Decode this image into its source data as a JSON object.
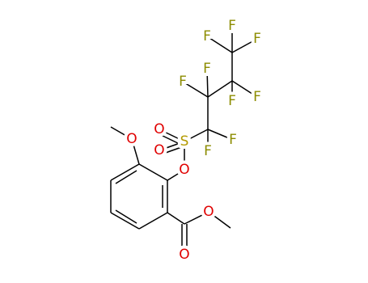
{
  "nodes": [
    {
      "label": "O"
    },
    {
      "label": "O"
    },
    {
      "label": "S"
    },
    {
      "label": "O"
    },
    {
      "label": "O"
    },
    {
      "label": "F"
    },
    {
      "label": "F"
    },
    {
      "label": "F"
    },
    {
      "label": "F"
    },
    {
      "label": "F"
    },
    {
      "label": "F"
    },
    {
      "label": "F"
    },
    {
      "label": "F"
    },
    {
      "label": "F"
    },
    {
      "label": "O"
    },
    {
      "label": "O"
    }
  ]
}
